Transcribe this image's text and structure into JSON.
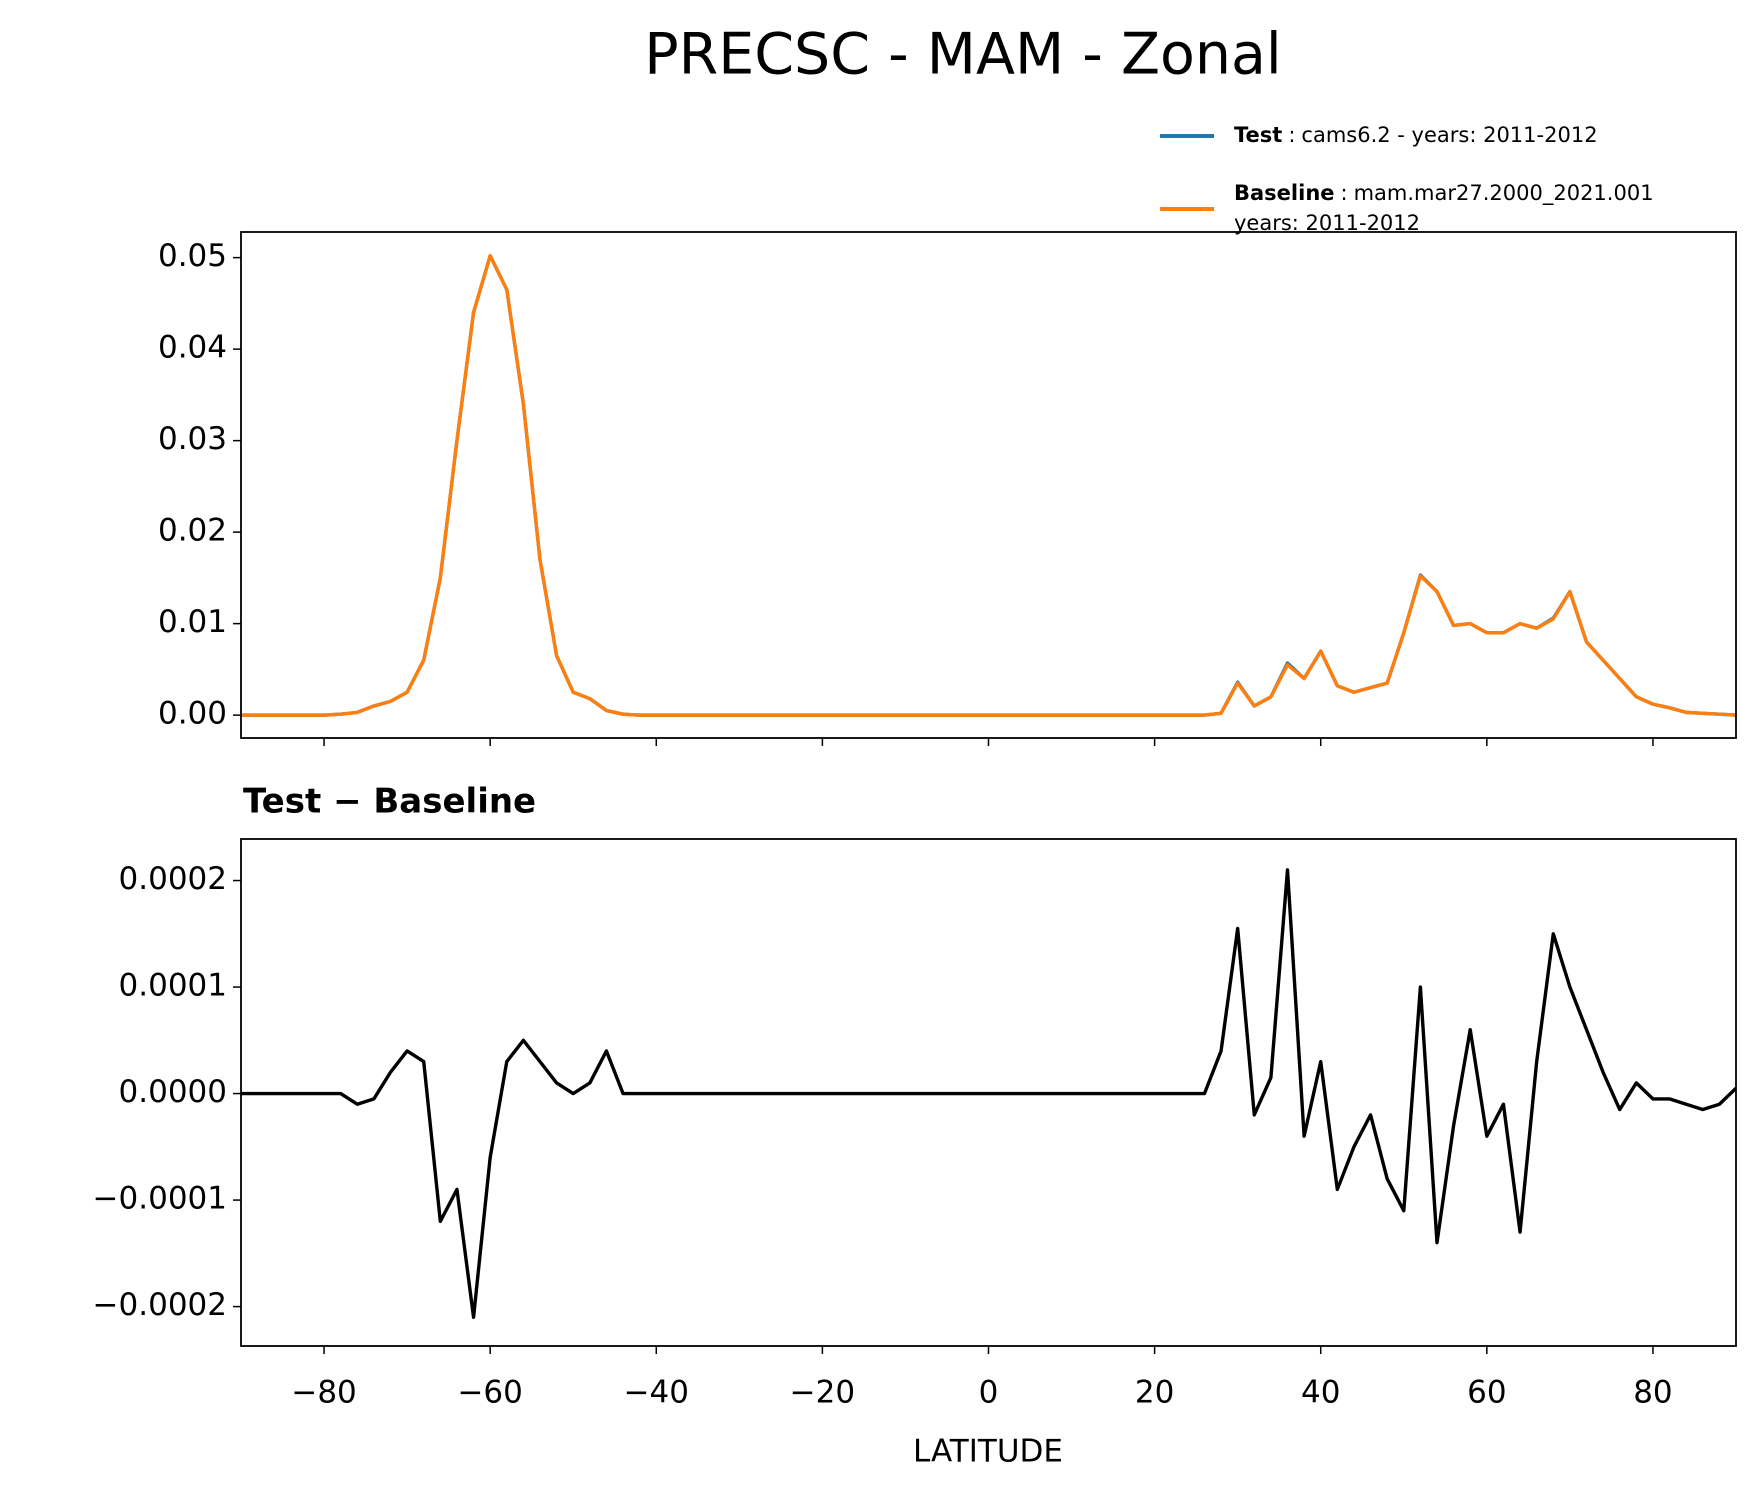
{
  "chart_data": [
    {
      "type": "line",
      "title": "PRECSC - MAM - Zonal",
      "x": [
        -90,
        -88,
        -86,
        -84,
        -82,
        -80,
        -78,
        -76,
        -74,
        -72,
        -70,
        -68,
        -66,
        -64,
        -62,
        -60,
        -58,
        -56,
        -54,
        -52,
        -50,
        -48,
        -46,
        -44,
        -42,
        -40,
        -38,
        -36,
        -34,
        -32,
        -30,
        -28,
        -26,
        -24,
        -22,
        -20,
        -18,
        -16,
        -14,
        -12,
        -10,
        -8,
        -6,
        -4,
        -2,
        0,
        2,
        4,
        6,
        8,
        10,
        12,
        14,
        16,
        18,
        20,
        22,
        24,
        26,
        28,
        30,
        32,
        34,
        36,
        38,
        40,
        42,
        44,
        46,
        48,
        50,
        52,
        54,
        56,
        58,
        60,
        62,
        64,
        66,
        68,
        70,
        72,
        74,
        76,
        78,
        80,
        82,
        84,
        86,
        88,
        90
      ],
      "series": [
        {
          "name": "Test",
          "legend_text": [
            "cams6.2 - years: 2011-2012"
          ],
          "color": "#1f77b4",
          "values": [
            0,
            0,
            0,
            0,
            0,
            0,
            0.0001,
            0.0003,
            0.001,
            0.0015,
            0.0025,
            0.006,
            0.015,
            0.03,
            0.044,
            0.0502,
            0.0465,
            0.034,
            0.017,
            0.0065,
            0.0025,
            0.0018,
            0.0005,
            0.0001,
            0,
            0,
            0,
            0,
            0,
            0,
            0,
            0,
            0,
            0,
            0,
            0,
            0,
            0,
            0,
            0,
            0,
            0,
            0,
            0,
            0,
            0,
            0,
            0,
            0,
            0,
            0,
            0,
            0,
            0,
            0,
            0,
            0,
            0,
            0,
            0.0002,
            0.0036,
            0.001,
            0.002,
            0.0057,
            0.004,
            0.007,
            0.0032,
            0.0025,
            0.003,
            0.0035,
            0.009,
            0.0153,
            0.0135,
            0.0098,
            0.01,
            0.009,
            0.009,
            0.01,
            0.0095,
            0.0106,
            0.0135,
            0.008,
            0.006,
            0.004,
            0.002,
            0.0012,
            0.0008,
            0.0003,
            0.0002,
            0.0001,
            0
          ]
        },
        {
          "name": "Baseline",
          "legend_text": [
            "mam.mar27.2000_2021.001",
            "years: 2011-2012"
          ],
          "color": "#ff7f0e",
          "values": [
            0,
            0,
            0,
            0,
            0,
            0,
            0.0001,
            0.0003,
            0.001,
            0.0015,
            0.0025,
            0.006,
            0.015,
            0.03,
            0.044,
            0.0502,
            0.0465,
            0.034,
            0.017,
            0.0065,
            0.0025,
            0.0018,
            0.0005,
            0.0001,
            0,
            0,
            0,
            0,
            0,
            0,
            0,
            0,
            0,
            0,
            0,
            0,
            0,
            0,
            0,
            0,
            0,
            0,
            0,
            0,
            0,
            0,
            0,
            0,
            0,
            0,
            0,
            0,
            0,
            0,
            0,
            0,
            0,
            0,
            0,
            0.0002,
            0.0035,
            0.001,
            0.002,
            0.0055,
            0.004,
            0.007,
            0.0032,
            0.0025,
            0.003,
            0.0035,
            0.009,
            0.0152,
            0.0135,
            0.0098,
            0.01,
            0.009,
            0.009,
            0.01,
            0.0095,
            0.0105,
            0.0135,
            0.008,
            0.006,
            0.004,
            0.002,
            0.0012,
            0.0008,
            0.0003,
            0.0002,
            0.0001,
            0
          ]
        }
      ],
      "xlim": [
        -90,
        90
      ],
      "xticks": [
        -80,
        -60,
        -40,
        -20,
        0,
        20,
        40,
        60,
        80
      ],
      "ylim": [
        -0.0025,
        0.0528
      ],
      "yticks": [
        {
          "value": 0,
          "label": "0.00"
        },
        {
          "value": 0.01,
          "label": "0.01"
        },
        {
          "value": 0.02,
          "label": "0.02"
        },
        {
          "value": 0.03,
          "label": "0.03"
        },
        {
          "value": 0.04,
          "label": "0.04"
        },
        {
          "value": 0.05,
          "label": "0.05"
        }
      ]
    },
    {
      "type": "line",
      "title": "Test − Baseline",
      "xlabel": "LATITUDE",
      "x": [
        -90,
        -88,
        -86,
        -84,
        -82,
        -80,
        -78,
        -76,
        -74,
        -72,
        -70,
        -68,
        -66,
        -64,
        -62,
        -60,
        -58,
        -56,
        -54,
        -52,
        -50,
        -48,
        -46,
        -44,
        -42,
        -40,
        -38,
        -36,
        -34,
        -32,
        -30,
        -28,
        -26,
        -24,
        -22,
        -20,
        -18,
        -16,
        -14,
        -12,
        -10,
        -8,
        -6,
        -4,
        -2,
        0,
        2,
        4,
        6,
        8,
        10,
        12,
        14,
        16,
        18,
        20,
        22,
        24,
        26,
        28,
        30,
        32,
        34,
        36,
        38,
        40,
        42,
        44,
        46,
        48,
        50,
        52,
        54,
        56,
        58,
        60,
        62,
        64,
        66,
        68,
        70,
        72,
        74,
        76,
        78,
        80,
        82,
        84,
        86,
        88,
        90
      ],
      "color": "#000000",
      "values": [
        0,
        0,
        0,
        0,
        0,
        0,
        0,
        -1e-05,
        -5e-06,
        2e-05,
        4e-05,
        3e-05,
        -0.00012,
        -9e-05,
        -0.00021,
        -6e-05,
        3e-05,
        5e-05,
        3e-05,
        1e-05,
        0,
        1e-05,
        4e-05,
        0,
        0,
        0,
        0,
        0,
        0,
        0,
        0,
        0,
        0,
        0,
        0,
        0,
        0,
        0,
        0,
        0,
        0,
        0,
        0,
        0,
        0,
        0,
        0,
        0,
        0,
        0,
        0,
        0,
        0,
        0,
        0,
        0,
        0,
        0,
        0,
        4e-05,
        0.000155,
        -2e-05,
        1.5e-05,
        0.00021,
        -4e-05,
        3e-05,
        -9e-05,
        -5e-05,
        -2e-05,
        -8e-05,
        -0.00011,
        0.0001,
        -0.00014,
        -3e-05,
        6e-05,
        -4e-05,
        -1e-05,
        -0.00013,
        3e-05,
        0.00015,
        0.0001,
        6e-05,
        2e-05,
        -1.5e-05,
        1e-05,
        -5e-06,
        -5e-06,
        -1e-05,
        -1.5e-05,
        -1e-05,
        5e-06
      ],
      "xlim": [
        -90,
        90
      ],
      "xticks": [
        {
          "value": -80,
          "label": "−80"
        },
        {
          "value": -60,
          "label": "−60"
        },
        {
          "value": -40,
          "label": "−40"
        },
        {
          "value": -20,
          "label": "−20"
        },
        0,
        20,
        40,
        60,
        80
      ],
      "ylim": [
        -0.000237,
        0.000239
      ],
      "yticks": [
        {
          "value": -0.0002,
          "label": "−0.0002"
        },
        {
          "value": -0.0001,
          "label": "−0.0001"
        },
        {
          "value": 0,
          "label": "0.0000"
        },
        {
          "value": 0.0001,
          "label": "0.0001"
        },
        {
          "value": 0.0002,
          "label": "0.0002"
        }
      ]
    }
  ]
}
